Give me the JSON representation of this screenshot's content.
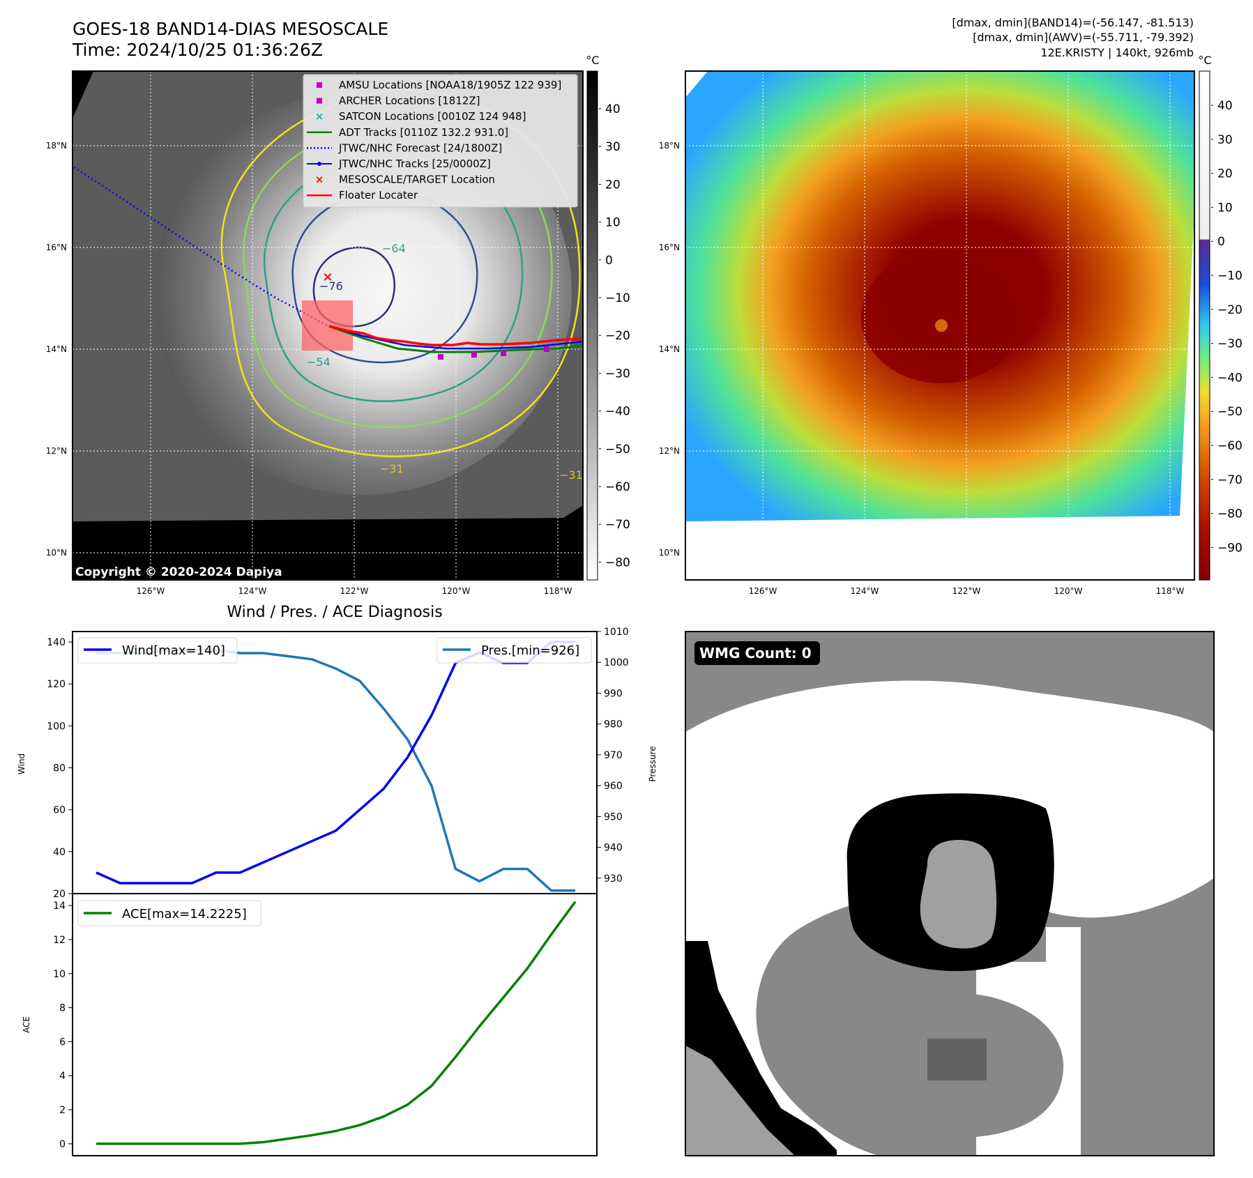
{
  "header": {
    "title_line1": "GOES-18 BAND14-DIAS MESOSCALE",
    "title_line2": "Time: 2024/10/25 01:36:26Z",
    "stats_line1": "[dmax, dmin](BAND14)=(-56.147, -81.513)",
    "stats_line2": "[dmax, dmin](AWV)=(-55.711, -79.392)",
    "stats_line3": "12E.KRISTY | 140kt, 926mb"
  },
  "ir_map": {
    "copyright": "Copyright © 2020-2024 Dapiya",
    "colorbar_unit": "°C",
    "colorbar_ticks": [
      "40",
      "30",
      "20",
      "10",
      "0",
      "−10",
      "−20",
      "−30",
      "−40",
      "−50",
      "−60",
      "−70",
      "−80"
    ],
    "lat_labels": [
      "18°N",
      "16°N",
      "14°N",
      "12°N",
      "10°N"
    ],
    "lon_labels": [
      "126°W",
      "124°W",
      "122°W",
      "120°W",
      "118°W"
    ],
    "contour_labels": [
      "−64",
      "−76",
      "−54",
      "−31",
      "−31"
    ],
    "legend": [
      {
        "label": "AMSU Locations [NOAA18/1905Z 122 939]",
        "kind": "square",
        "color": "#c000c0"
      },
      {
        "label": "ARCHER Locations [1812Z]",
        "kind": "square",
        "color": "#c000c0"
      },
      {
        "label": "SATCON Locations [0010Z 124 948]",
        "kind": "x",
        "color": "#00b8c0"
      },
      {
        "label": "ADT Tracks [0110Z 132.2 931.0]",
        "kind": "line",
        "color": "#008000"
      },
      {
        "label": "JTWC/NHC Forecast [24/1800Z]",
        "kind": "dotted",
        "color": "#0000ff"
      },
      {
        "label": "JTWC/NHC Tracks [25/0000Z]",
        "kind": "linedot",
        "color": "#0000ff"
      },
      {
        "label": "MESOSCALE/TARGET Location",
        "kind": "x",
        "color": "#ff0000"
      },
      {
        "label": "Floater Locater",
        "kind": "line",
        "color": "#ff0000"
      }
    ]
  },
  "awv_map": {
    "colorbar_unit": "°C",
    "colorbar_ticks": [
      "40",
      "30",
      "20",
      "10",
      "0",
      "−10",
      "−20",
      "−30",
      "−40",
      "−50",
      "−60",
      "−70",
      "−80",
      "−90"
    ],
    "lat_labels": [
      "18°N",
      "16°N",
      "14°N",
      "12°N",
      "10°N"
    ],
    "lon_labels": [
      "126°W",
      "124°W",
      "122°W",
      "120°W",
      "118°W"
    ]
  },
  "diagnosis": {
    "title": "Wind / Pres. / ACE Diagnosis",
    "wind_ylabel": "Wind",
    "pres_ylabel": "Pressure",
    "ace_ylabel": "ACE",
    "wind_legend": "Wind[max=140]",
    "pres_legend": "Pres.[min=926]",
    "ace_legend": "ACE[max=14.2225]",
    "wind_ticks": [
      "140",
      "120",
      "100",
      "80",
      "60",
      "40",
      "20"
    ],
    "pres_ticks": [
      "1010",
      "1000",
      "990",
      "980",
      "970",
      "960",
      "950",
      "940",
      "930"
    ],
    "ace_ticks": [
      "14",
      "12",
      "10",
      "8",
      "6",
      "4",
      "2",
      "0"
    ],
    "colors": {
      "wind": "#0000ee",
      "pres": "#1f77b4",
      "ace": "#008000"
    }
  },
  "wmg": {
    "label": "WMG Count: 0"
  },
  "chart_data": [
    {
      "type": "line",
      "title": "Wind / Pres. / ACE Diagnosis",
      "ylabel": "Wind",
      "ylim": [
        20,
        145
      ],
      "series": [
        {
          "name": "Wind[max=140]",
          "values": [
            30,
            25,
            25,
            25,
            25,
            30,
            30,
            35,
            40,
            45,
            50,
            60,
            70,
            85,
            105,
            130,
            135,
            130,
            130,
            140,
            140
          ]
        }
      ]
    },
    {
      "type": "line",
      "ylabel": "Pressure",
      "ylim": [
        925,
        1010
      ],
      "series": [
        {
          "name": "Pres.[min=926]",
          "values": [
            1003,
            1003,
            1003,
            1004,
            1004,
            1004,
            1003,
            1003,
            1002,
            1001,
            998,
            994,
            985,
            975,
            960,
            933,
            929,
            933,
            933,
            926,
            926
          ]
        }
      ]
    },
    {
      "type": "line",
      "ylabel": "ACE",
      "ylim": [
        -0.7,
        14.7
      ],
      "series": [
        {
          "name": "ACE[max=14.2225]",
          "values": [
            0,
            0,
            0,
            0,
            0,
            0,
            0,
            0.1,
            0.3,
            0.5,
            0.75,
            1.1,
            1.6,
            2.3,
            3.4,
            5.1,
            6.9,
            8.6,
            10.3,
            12.3,
            14.2225
          ]
        }
      ]
    }
  ]
}
